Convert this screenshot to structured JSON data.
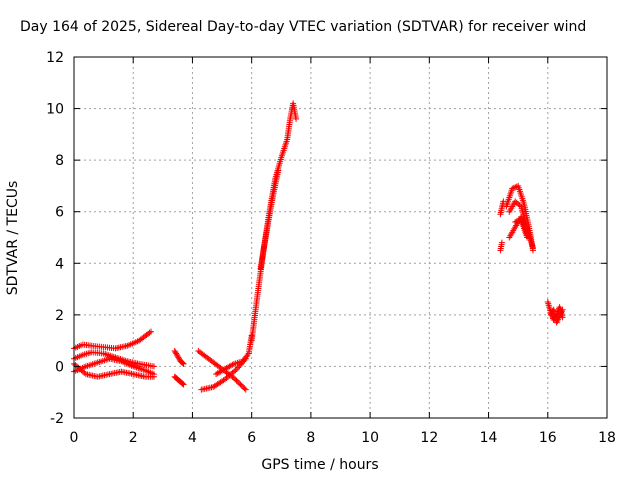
{
  "chart_data": {
    "type": "scatter",
    "title": "Day 164 of 2025, Sidereal Day-to-day VTEC variation (SDTVAR) for receiver wind",
    "xlabel": "GPS time / hours",
    "ylabel": "SDTVAR / TECUs",
    "xlim": [
      0,
      18
    ],
    "ylim": [
      -2,
      12
    ],
    "xticks": [
      "0",
      "2",
      "4",
      "6",
      "8",
      "10",
      "12",
      "14",
      "16",
      "18"
    ],
    "yticks": [
      "-2",
      "0",
      "2",
      "4",
      "6",
      "8",
      "10",
      "12"
    ],
    "grid": true,
    "marker": "+",
    "color": "#ff0000",
    "series": [
      {
        "name": "SDTVAR",
        "segments": [
          {
            "x": [
              0.0,
              0.3,
              0.6,
              1.0,
              1.4,
              1.8,
              2.2,
              2.6
            ],
            "y": [
              0.7,
              0.85,
              0.8,
              0.75,
              0.7,
              0.8,
              1.0,
              1.35
            ]
          },
          {
            "x": [
              0.0,
              0.3,
              0.6,
              1.0,
              1.4,
              1.8,
              2.2,
              2.7
            ],
            "y": [
              0.3,
              0.45,
              0.55,
              0.5,
              0.35,
              0.2,
              0.1,
              0.0
            ]
          },
          {
            "x": [
              0.0,
              0.4,
              0.8,
              1.2,
              1.6,
              2.0,
              2.4,
              2.7
            ],
            "y": [
              -0.2,
              0.0,
              0.15,
              0.3,
              0.2,
              0.0,
              -0.15,
              -0.3
            ]
          },
          {
            "x": [
              0.0,
              0.4,
              0.8,
              1.2,
              1.6,
              2.0,
              2.4,
              2.7
            ],
            "y": [
              0.1,
              -0.3,
              -0.4,
              -0.3,
              -0.2,
              -0.3,
              -0.4,
              -0.4
            ]
          },
          {
            "x": [
              3.4,
              3.5,
              3.6,
              3.7
            ],
            "y": [
              0.6,
              0.4,
              0.2,
              0.1
            ]
          },
          {
            "x": [
              3.4,
              3.5,
              3.6,
              3.7
            ],
            "y": [
              -0.4,
              -0.5,
              -0.6,
              -0.7
            ]
          },
          {
            "x": [
              4.2,
              4.6,
              5.0,
              5.4,
              5.8
            ],
            "y": [
              0.6,
              0.25,
              -0.1,
              -0.45,
              -0.9
            ]
          },
          {
            "x": [
              4.3,
              4.7,
              5.1,
              5.5,
              5.8
            ],
            "y": [
              -0.9,
              -0.8,
              -0.5,
              -0.1,
              0.3
            ]
          },
          {
            "x": [
              4.8,
              5.1,
              5.4,
              5.7,
              5.9,
              6.0
            ],
            "y": [
              -0.3,
              -0.1,
              0.1,
              0.2,
              0.5,
              1.2
            ]
          },
          {
            "x": [
              6.0,
              6.2,
              6.4,
              6.6,
              6.8,
              7.0,
              7.2,
              7.3,
              7.4,
              7.5
            ],
            "y": [
              1.0,
              2.8,
              4.5,
              6.0,
              7.3,
              8.1,
              8.8,
              9.6,
              10.2,
              9.6
            ]
          },
          {
            "x": [
              6.3,
              6.5,
              6.7,
              6.9
            ],
            "y": [
              3.8,
              5.2,
              6.5,
              7.6
            ]
          },
          {
            "x": [
              14.4,
              14.45
            ],
            "y": [
              4.5,
              4.8
            ]
          },
          {
            "x": [
              14.4,
              14.5
            ],
            "y": [
              5.9,
              6.4
            ]
          },
          {
            "x": [
              14.6,
              14.8,
              15.0,
              15.2,
              15.4,
              15.5
            ],
            "y": [
              6.2,
              6.9,
              7.0,
              6.3,
              5.2,
              4.5
            ]
          },
          {
            "x": [
              14.7,
              14.9,
              15.1,
              15.3,
              15.5
            ],
            "y": [
              6.0,
              6.4,
              6.2,
              5.4,
              4.6
            ]
          },
          {
            "x": [
              14.7,
              14.9,
              15.1,
              15.3
            ],
            "y": [
              5.0,
              5.4,
              5.8,
              5.1
            ]
          },
          {
            "x": [
              14.9,
              15.1,
              15.3
            ],
            "y": [
              5.6,
              5.7,
              5.0
            ]
          },
          {
            "x": [
              16.0,
              16.1,
              16.2,
              16.3,
              16.4,
              16.5
            ],
            "y": [
              2.5,
              2.1,
              1.8,
              2.0,
              2.3,
              1.9
            ]
          },
          {
            "x": [
              16.1,
              16.2,
              16.3,
              16.5
            ],
            "y": [
              2.0,
              2.2,
              1.7,
              2.2
            ]
          }
        ]
      }
    ]
  }
}
